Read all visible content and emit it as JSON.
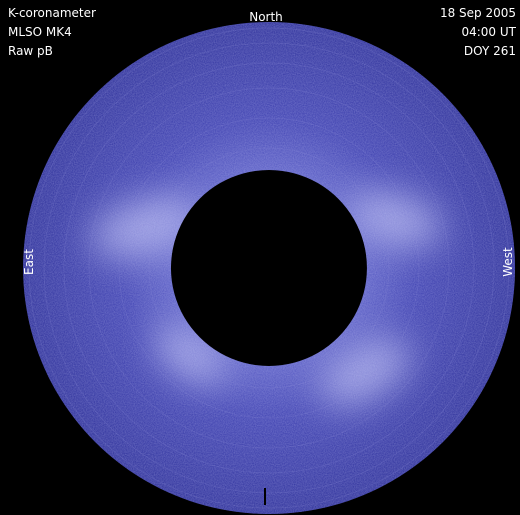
{
  "header": {
    "left": [
      "K-coronameter",
      "MLSO MK4",
      "Raw pB"
    ],
    "right": [
      "18 Sep 2005",
      "04:00 UT",
      "DOY 261"
    ]
  },
  "directions": {
    "north": "North",
    "east": "East",
    "west": "West"
  }
}
